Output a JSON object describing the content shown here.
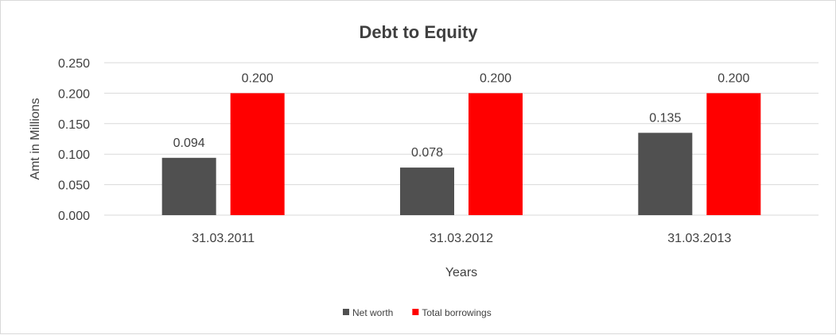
{
  "chart_data": {
    "type": "bar",
    "title": "Debt to Equity",
    "xlabel": "Years",
    "ylabel": "Amt in Millions",
    "categories": [
      "31.03.2011",
      "31.03.2012",
      "31.03.2013"
    ],
    "series": [
      {
        "name": "Net worth",
        "values": [
          0.094,
          0.078,
          0.135
        ],
        "labels": [
          "0.094",
          "0.078",
          "0.135"
        ],
        "color": "#505050"
      },
      {
        "name": "Total borrowings",
        "values": [
          0.2,
          0.2,
          0.2
        ],
        "labels": [
          "0.200",
          "0.200",
          "0.200"
        ],
        "color": "#ff0000"
      }
    ],
    "ylim": [
      0,
      0.25
    ],
    "yticks": [
      "0.000",
      "0.050",
      "0.100",
      "0.150",
      "0.200",
      "0.250"
    ],
    "grid": true,
    "legend": "bottom"
  }
}
